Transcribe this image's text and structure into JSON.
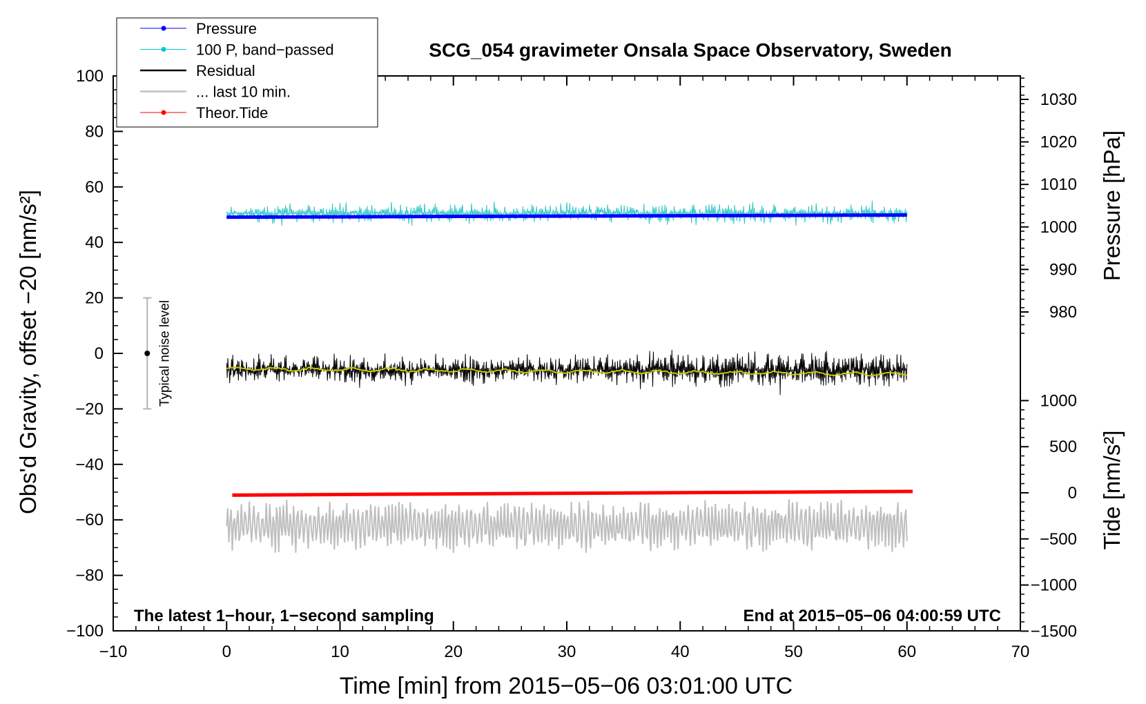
{
  "chart_data": {
    "type": "line",
    "title": "SCG_054 gravimeter Onsala Space Observatory, Sweden",
    "xlabel": "Time [min] from 2015−05−06 03:01:00 UTC",
    "ylabel_left": "Obs'd Gravity, offset −20 [nm/s²]",
    "ylabel_pressure": "Pressure [hPa]",
    "ylabel_tide": "Tide [nm/s²]",
    "xlim": [
      -10,
      70
    ],
    "ylim": [
      -100,
      100
    ],
    "pressure_range_shown": [
      975,
      1035
    ],
    "tide_range_shown": [
      -1500,
      1000
    ],
    "x_ticks": [
      "−10",
      "0",
      "10",
      "20",
      "30",
      "40",
      "50",
      "60",
      "70"
    ],
    "y_ticks_left": [
      "−100",
      "−80",
      "−60",
      "−40",
      "−20",
      "0",
      "20",
      "40",
      "60",
      "80",
      "100"
    ],
    "y_ticks_pressure": [
      "980",
      "990",
      "1000",
      "1010",
      "1020",
      "1030"
    ],
    "y_ticks_tide": [
      "−1500",
      "−1000",
      "−500",
      "0",
      "500",
      "1000"
    ],
    "left_annotation": "The latest 1−hour, 1−second sampling",
    "right_annotation": "End at 2015−05−06 04:00:59 UTC",
    "noise_label": "Typical noise level",
    "noise_bar": {
      "x": -7,
      "center": 0,
      "low": -20,
      "high": 20
    },
    "legend": [
      {
        "label": "Pressure",
        "color": "#0000ff",
        "marker": true
      },
      {
        "label": "100 P, band−passed",
        "color": "#00c8c8",
        "marker": true
      },
      {
        "label": "Residual",
        "color": "#000000",
        "marker": false
      },
      {
        "label": "... last 10 min.",
        "color": "#bfbfbf",
        "marker": false
      },
      {
        "label": "Theor.Tide",
        "color": "#ff0000",
        "marker": true
      }
    ],
    "series": [
      {
        "name": "Pressure",
        "axis": "pressure",
        "color": "#0000ff",
        "x_range": [
          0,
          60
        ],
        "values_hPa": [
          1002.3,
          1002.8
        ]
      },
      {
        "name": "100 P, band-passed",
        "axis": "left",
        "color": "#2fc6c6",
        "x_range": [
          0,
          60
        ],
        "center": 50.5,
        "amplitude": 5,
        "peak_max": 58,
        "peak_min": 39
      },
      {
        "name": "Residual",
        "axis": "left",
        "color": "#000000",
        "x_range": [
          0,
          60
        ],
        "center": -6,
        "amplitude": 7,
        "peak_max": 8,
        "peak_min": -21
      },
      {
        "name": "Residual smoothed",
        "axis": "left",
        "color": "#c8c800",
        "x_range": [
          0,
          60
        ],
        "start": -5.5,
        "end": -7.5
      },
      {
        "name": "Theor.Tide",
        "axis": "tide",
        "color": "#ff0000",
        "x": [
          0.5,
          60.5
        ],
        "values": [
          -25,
          15
        ]
      },
      {
        "name": "... last 10 min.",
        "axis": "left",
        "color": "#bfbfbf",
        "x_range": [
          0,
          60
        ],
        "center": -62,
        "amplitude": 8,
        "peak_max": -49,
        "peak_min": -76
      }
    ]
  }
}
